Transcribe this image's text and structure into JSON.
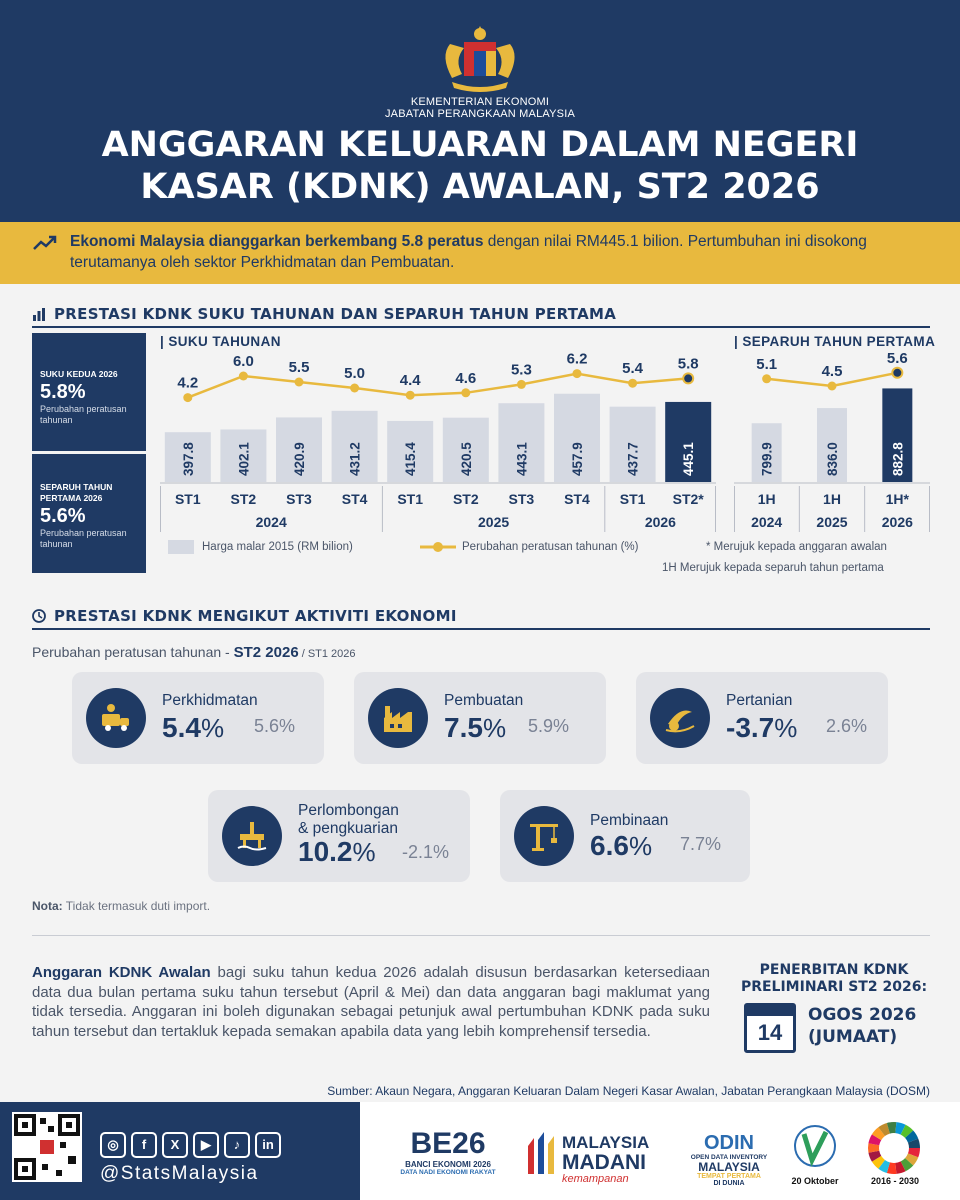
{
  "header": {
    "ministry_line1": "KEMENTERIAN EKONOMI",
    "ministry_line2": "JABATAN PERANGKAAN MALAYSIA",
    "title_line1": "ANGGARAN KELUARAN DALAM NEGERI",
    "title_line2": "KASAR (KDNK) AWALAN, ST2 2026",
    "crest_icon": "malaysia-coat-of-arms-icon"
  },
  "banner": {
    "bold_text": "Ekonomi Malaysia dianggarkan berkembang 5.8 peratus",
    "rest_text": " dengan nilai RM445.1 bilion. Pertumbuhan ini disokong terutamanya oleh sektor Perkhidmatan dan Pembuatan.",
    "icon": "trend-up-icon"
  },
  "section1": {
    "title": "PRESTASI KDNK SUKU TAHUNAN DAN SEPARUH TAHUN PERTAMA",
    "quarter_label": "| SUKU TAHUNAN",
    "half_label": "| SEPARUH TAHUN PERTAMA",
    "sidebox1": {
      "label": "SUKU KEDUA 2026",
      "value": "5.8%",
      "sub": "Perubahan peratusan tahunan"
    },
    "sidebox2": {
      "label": "SEPARUH TAHUN PERTAMA 2026",
      "value": "5.6%",
      "sub": "Perubahan peratusan tahunan"
    },
    "legend_bar": "Harga malar 2015 (RM bilion)",
    "legend_line": "Perubahan peratusan tahunan (%)",
    "note_star": "* Merujuk kepada anggaran awalan",
    "note_1h": "1H Merujuk kepada separuh tahun pertama"
  },
  "chart_data": [
    {
      "type": "bar",
      "categories": [
        "ST1",
        "ST2",
        "ST3",
        "ST4",
        "ST1",
        "ST2",
        "ST3",
        "ST4",
        "ST1",
        "ST2*"
      ],
      "groups": [
        {
          "label": "2024",
          "span": [
            0,
            3
          ]
        },
        {
          "label": "2025",
          "span": [
            4,
            7
          ]
        },
        {
          "label": "2026",
          "span": [
            8,
            9
          ]
        }
      ],
      "series": [
        {
          "name": "Harga malar 2015 (RM bilion)",
          "type": "bar",
          "values": [
            397.8,
            402.1,
            420.9,
            431.2,
            415.4,
            420.5,
            443.1,
            457.9,
            437.7,
            445.1
          ],
          "highlight_index": 9
        },
        {
          "name": "Perubahan peratusan tahunan (%)",
          "type": "line",
          "values": [
            4.2,
            6.0,
            5.5,
            5.0,
            4.4,
            4.6,
            5.3,
            6.2,
            5.4,
            5.8
          ]
        }
      ],
      "title": "| SUKU TAHUNAN",
      "colors": {
        "bar": "#d5d9e2",
        "highlight": "#1f3a64",
        "line": "#e8b93e"
      }
    },
    {
      "type": "bar",
      "categories": [
        "1H",
        "1H",
        "1H*"
      ],
      "groups": [
        {
          "label": "2024",
          "span": [
            0,
            0
          ]
        },
        {
          "label": "2025",
          "span": [
            1,
            1
          ]
        },
        {
          "label": "2026",
          "span": [
            2,
            2
          ]
        }
      ],
      "series": [
        {
          "name": "Harga malar 2015 (RM bilion)",
          "type": "bar",
          "values": [
            799.9,
            836.0,
            882.8
          ],
          "highlight_index": 2
        },
        {
          "name": "Perubahan peratusan tahunan (%)",
          "type": "line",
          "values": [
            5.1,
            4.5,
            5.6
          ]
        }
      ],
      "title": "| SEPARUH TAHUN PERTAMA",
      "colors": {
        "bar": "#d5d9e2",
        "highlight": "#1f3a64",
        "line": "#e8b93e"
      }
    }
  ],
  "section2": {
    "title": "PRESTASI KDNK MENGIKUT AKTIVITI EKONOMI",
    "subtitle_prefix": "Perubahan peratusan tahunan - ",
    "subtitle_bold": "ST2 2026",
    "subtitle_small": " / ST1 2026",
    "sectors": [
      {
        "name": "Perkhidmatan",
        "value": "5.4",
        "prev": "5.6%",
        "icon": "services-icon"
      },
      {
        "name": "Pembuatan",
        "value": "7.5",
        "prev": "5.9%",
        "icon": "factory-icon"
      },
      {
        "name": "Pertanian",
        "value": "-3.7",
        "prev": "2.6%",
        "icon": "palm-oil-icon"
      },
      {
        "name": "Perlombongan\n& pengkuarian",
        "name_line1": "Perlombongan",
        "name_line2": "& pengkuarian",
        "value": "10.2",
        "prev": "-2.1%",
        "icon": "oil-rig-icon"
      },
      {
        "name": "Pembinaan",
        "value": "6.6",
        "prev": "7.7%",
        "icon": "crane-icon"
      }
    ],
    "pct_sign": "%",
    "nota_bold": "Nota:",
    "nota_text": " Tidak termasuk duti import."
  },
  "explain": {
    "bold": "Anggaran KDNK Awalan",
    "text": " bagi suku tahun kedua 2026 adalah disusun berdasarkan ketersediaan data dua bulan pertama suku tahun tersebut (April & Mei) dan data anggaran bagi maklumat yang tidak tersedia. Anggaran ini boleh digunakan sebagai petunjuk awal pertumbuhan KDNK pada suku tahun tersebut dan tertakluk kepada semakan apabila data yang lebih komprehensif tersedia."
  },
  "publication": {
    "title_line1": "PENERBITAN KDNK",
    "title_line2": "PRELIMINARI ST2 2026:",
    "day": "14",
    "date_line1": "OGOS 2026",
    "date_line2": "(JUMAAT)",
    "icon": "calendar-icon"
  },
  "source": "Sumber: Akaun Negara, Anggaran Keluaran Dalam Negeri Kasar Awalan, Jabatan Perangkaan Malaysia (DOSM)",
  "footer": {
    "handle": "@StatsMalaysia",
    "social": [
      "instagram-icon",
      "facebook-icon",
      "x-icon",
      "youtube-icon",
      "tiktok-icon",
      "linkedin-icon"
    ],
    "social_glyphs": [
      "◎",
      "f",
      "X",
      "▶",
      "♪",
      "in"
    ],
    "logo1_main": "BE26",
    "logo1_line1": "BANCI EKONOMI 2026",
    "logo1_line2": "DATA NADI EKONOMI RAKYAT",
    "logo2_line1": "MALAYSIA",
    "logo2_line2": "MADANI",
    "logo2_line3": "kemampanan",
    "logo3_main": "ODIN",
    "logo3_line1": "OPEN DATA INVENTORY",
    "logo3_line2": "MALAYSIA",
    "logo3_line3": "TEMPAT PERTAMA",
    "logo3_line4": "DI DUNIA",
    "logo4_date": "20 Oktober",
    "logo5_years": "2016 - 2030"
  }
}
